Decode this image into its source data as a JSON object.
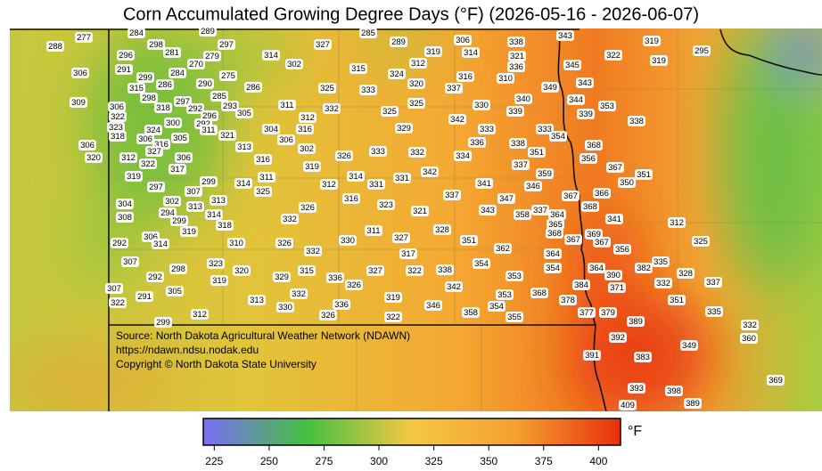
{
  "map": {
    "title": "Corn Accumulated Growing Degree Days (°F) (2026-05-16 - 2026-06-07)",
    "source_lines": [
      "Source: North Dakota Agricultural Weather Network (NDAWN)",
      "https://ndawn.ndsu.nodak.edu",
      "Copyright © North Dakota State University"
    ],
    "stations": [
      277,
      284,
      289,
      285,
      343,
      288,
      298,
      297,
      327,
      289,
      306,
      338,
      319,
      295,
      296,
      281,
      279,
      314,
      319,
      314,
      321,
      322,
      319,
      270,
      302,
      312,
      336,
      345,
      306,
      291,
      284,
      315,
      324,
      316,
      310,
      299,
      275,
      343,
      349,
      315,
      286,
      290,
      286,
      325,
      333,
      320,
      337,
      298,
      285,
      340,
      344,
      309,
      306,
      318,
      297,
      292,
      293,
      311,
      332,
      325,
      325,
      330,
      339,
      353,
      322,
      296,
      305,
      312,
      342,
      339,
      338,
      300,
      292,
      323,
      311,
      304,
      316,
      329,
      333,
      333,
      354,
      324,
      318,
      306,
      305,
      321,
      306,
      316,
      313,
      302,
      336,
      338,
      368,
      306,
      327,
      326,
      333,
      332,
      334,
      351,
      356,
      320,
      312,
      306,
      316,
      322,
      319,
      337,
      367,
      317,
      342,
      359,
      351,
      319,
      311,
      314,
      331,
      299,
      312,
      331,
      341,
      346,
      350,
      297,
      307,
      314,
      325,
      313,
      316,
      337,
      347,
      367,
      366,
      304,
      302,
      313,
      323,
      368,
      326,
      321,
      343,
      358,
      337,
      364,
      341,
      294,
      314,
      365,
      312,
      308,
      299,
      318,
      332,
      319,
      311,
      328,
      368,
      369,
      306,
      327,
      351,
      367,
      367,
      325,
      292,
      314,
      310,
      326,
      330,
      362,
      332,
      317,
      364,
      356,
      307,
      323,
      354,
      335,
      298,
      320,
      315,
      327,
      322,
      338,
      354,
      364,
      292,
      319,
      329,
      336,
      353,
      390,
      382,
      328,
      326,
      342,
      384,
      371,
      332,
      337,
      307,
      305,
      332,
      319,
      353,
      368,
      291,
      313,
      378,
      351,
      322,
      330,
      336,
      346,
      354,
      312,
      326,
      322,
      358,
      355,
      377,
      379,
      335,
      299,
      389,
      332,
      392,
      360,
      349,
      391,
      383,
      369,
      393,
      398,
      389,
      409
    ],
    "colorbar": {
      "unit": "°F",
      "lim": [
        220,
        410
      ],
      "ticks": [
        225,
        250,
        275,
        300,
        325,
        350,
        375,
        400
      ],
      "colors": [
        "#7b6ef5",
        "#45c040",
        "#f5c842",
        "#f5a030",
        "#e8300a"
      ]
    }
  }
}
